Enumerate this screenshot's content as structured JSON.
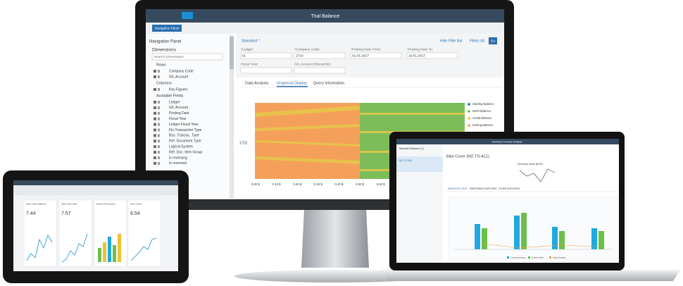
{
  "monitor": {
    "title": "Trial Balance",
    "nav_button": "Navigation Panel",
    "nav_panel": {
      "title": "Navigation Panel",
      "dimensions": "Dimensions",
      "search": "Search Dimensions",
      "rows_label": "Rows",
      "rows": [
        "Company Code",
        "G/L Account"
      ],
      "columns_label": "Columns",
      "columns": [
        "Key Figures"
      ],
      "available_label": "Available Fields",
      "available": [
        "Ledger",
        "G/L Account",
        "Posting Date",
        "Fiscal Year",
        "Ledger Fiscal Year",
        "Fin.Transaction Type",
        "Bus. Transac. Type",
        "Ref. Document Type",
        "Logical System",
        "Ref. Doc. Item Group",
        "Is reversing",
        "Is reversed"
      ]
    },
    "filter_bar": {
      "variant": "Standard *",
      "hide": "Hide Filter Bar",
      "filters": "Filters (4)",
      "go": "Go",
      "fields": [
        {
          "label": "*Ledger:",
          "value": "0L"
        },
        {
          "label": "*Company Code:",
          "value": "1710"
        },
        {
          "label": "*Posting Date From:",
          "value": "01.01.2017"
        },
        {
          "label": "*Posting Date To:",
          "value": "19.01.2017"
        },
        {
          "label": "Fiscal Year:",
          "value": ""
        },
        {
          "label": "G/L Account (Hierarchy):",
          "value": ""
        }
      ]
    },
    "tabs": [
      "Data Analysis",
      "Graphical Display",
      "Query Information"
    ],
    "chart": {
      "y_label": "1710",
      "x_ticks": [
        "0.00 $",
        "0.10 $",
        "0.20 $",
        "0.30 $",
        "0.40 $",
        "0.50 $",
        "0.60 $"
      ],
      "legend": [
        "Starting Balance",
        "Debit Balance",
        "Credit Balance",
        "Ending Balance"
      ]
    }
  },
  "laptop": {
    "app": "Inventory Turnover Analysis",
    "left_title": "Standard Measure (1)",
    "list_item": "MZ-TG-A11",
    "object_title": "Bike Cover (MZ-TG-A11)",
    "kpi_label": "Inventory Value (EUR)",
    "tabs": [
      "INVENTORY DATA",
      "PREFERRED SUPPLIERS",
      "OTHER SUPPLIERS"
    ],
    "legend": [
      "Current Inventory",
      "Current Value",
      "Stock Quantity"
    ]
  },
  "tablet": {
    "tiles": [
      {
        "title": "Sales Order Fulfillment",
        "value": "7.44"
      },
      {
        "title": "Sales Order Value",
        "value": "7.57"
      },
      {
        "title": "Delivery Performance",
        "value": ""
      },
      {
        "title": "Open Orders",
        "value": "6.54"
      }
    ]
  }
}
